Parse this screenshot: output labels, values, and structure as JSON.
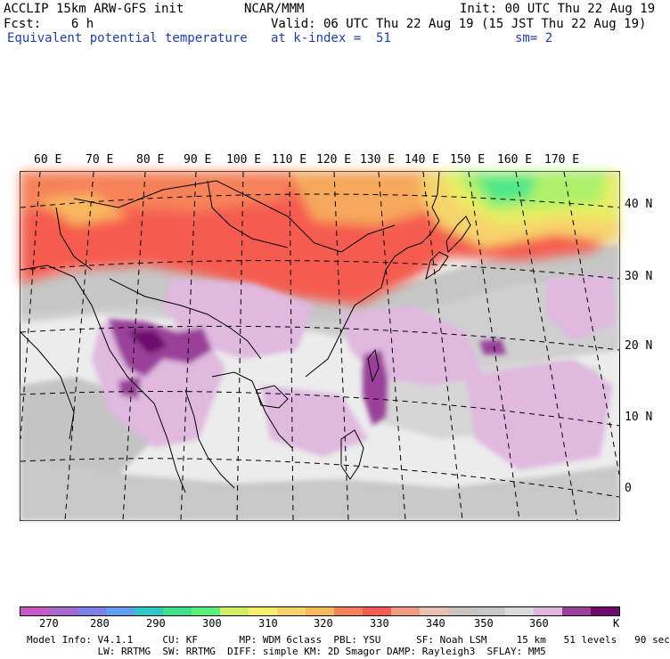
{
  "header": {
    "line1_left": "ACCLIP 15km ARW-GFS init",
    "line1_center": "NCAR/MMM",
    "line1_right": "Init: 00 UTC Thu 22 Aug 19",
    "line2_left": "Fcst:    6 h",
    "line2_right": "Valid: 06 UTC Thu 22 Aug 19 (15 JST Thu 22 Aug 19)",
    "line3_left": "Equivalent potential temperature",
    "line3_center": "at k-index =  51",
    "line3_right": "sm= 2"
  },
  "longitude_labels": [
    "60 E",
    "70 E",
    "80 E",
    "90 E",
    "100 E",
    "110 E",
    "120 E",
    "130 E",
    "140 E",
    "150 E",
    "160 E",
    "170 E"
  ],
  "latitude_labels": [
    "40 N",
    "30 N",
    "20 N",
    "10 N",
    "0"
  ],
  "colorbar": {
    "colors": [
      "#c858c8",
      "#a868d0",
      "#7f7fe8",
      "#5f9ef0",
      "#2ec8c8",
      "#3ee08a",
      "#5af07a",
      "#cfef60",
      "#f7ef6c",
      "#f6d46c",
      "#f8b85e",
      "#f7825a",
      "#f55c50",
      "#f79a82",
      "#e8c2b0",
      "#cdc4c0",
      "#c8c8c8",
      "#dadada",
      "#e0b8e0",
      "#9a3f9a",
      "#6e0a6e"
    ],
    "labels": [
      "270",
      "280",
      "290",
      "300",
      "310",
      "320",
      "330",
      "340",
      "350",
      "360",
      "K"
    ]
  },
  "footer": {
    "line1": "Model Info: V4.1.1     CU: KF       MP: WDM 6class  PBL: YSU      SF: Noah LSM     15 km   51 levels   90 sec",
    "line2": "            LW: RRTMG  SW: RRTMG  DIFF: simple KM: 2D Smagor DAMP: Rayleigh3  SFLAY: MM5"
  }
}
